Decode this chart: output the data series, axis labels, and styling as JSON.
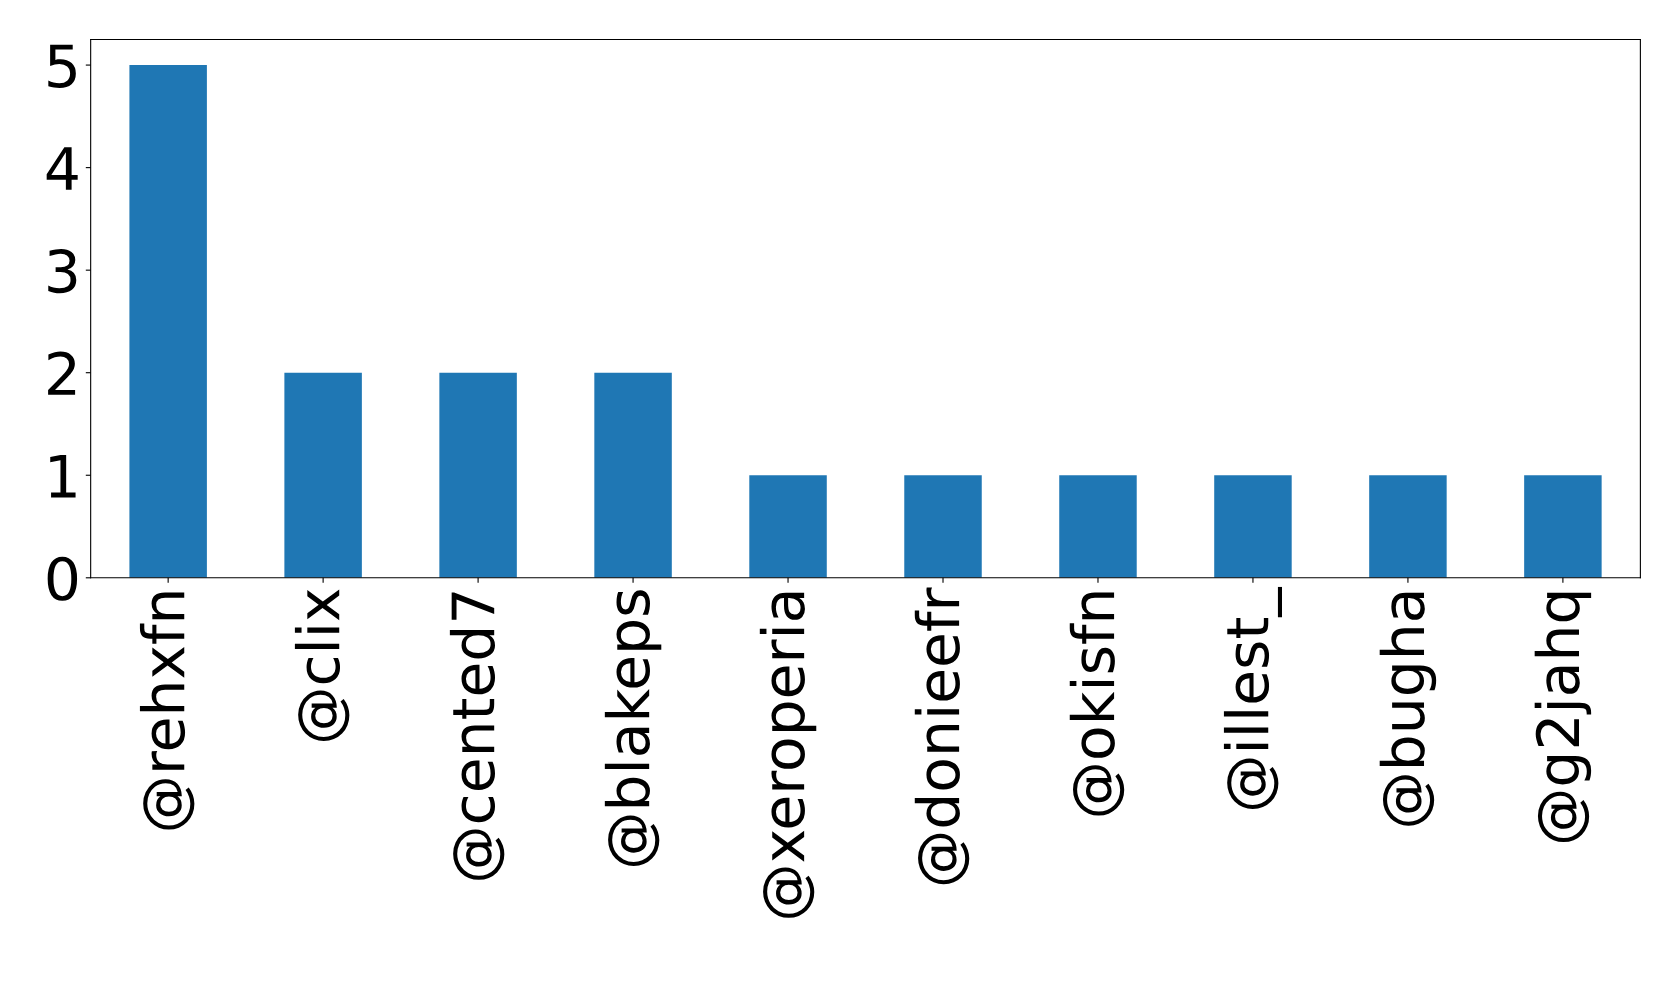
{
  "chart_data": {
    "type": "bar",
    "categories": [
      "@rehxfn",
      "@clix",
      "@cented7",
      "@blakeps",
      "@xeroperia",
      "@donieefr",
      "@okisfn",
      "@illest_",
      "@bugha",
      "@g2jahq"
    ],
    "values": [
      5,
      2,
      2,
      2,
      1,
      1,
      1,
      1,
      1,
      1
    ],
    "color": "#1f77b4",
    "ylim": [
      0,
      5.25
    ],
    "yticks": [
      0,
      1,
      2,
      3,
      4,
      5
    ],
    "grid": false,
    "legend": false
  }
}
